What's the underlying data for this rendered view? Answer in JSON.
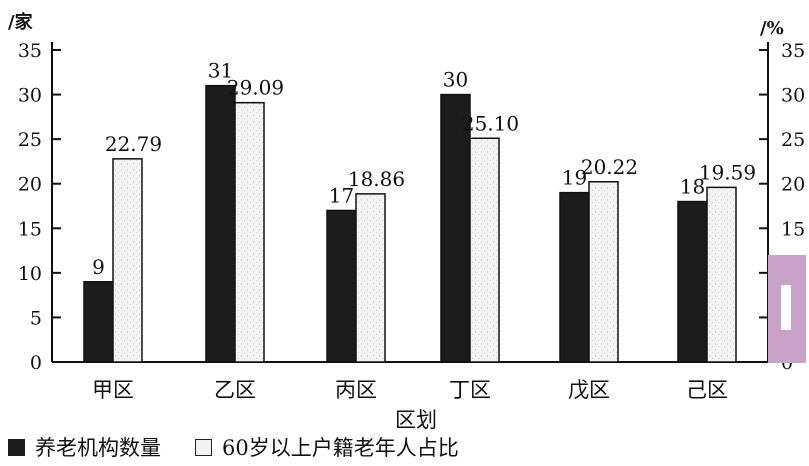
{
  "chart_data": {
    "type": "bar",
    "categories": [
      "甲区",
      "乙区",
      "丙区",
      "丁区",
      "戊区",
      "己区"
    ],
    "series": [
      {
        "name": "养老机构数量",
        "axis": "left",
        "color": "#1c1c1c",
        "values": [
          9,
          31,
          17,
          30,
          19,
          18
        ],
        "labels": [
          "9",
          "31",
          "17",
          "30",
          "19",
          "18"
        ]
      },
      {
        "name": "60岁以上户籍老年人占比",
        "axis": "right",
        "color": "#f2f2f2",
        "values": [
          22.79,
          29.09,
          18.86,
          25.1,
          20.22,
          19.59
        ],
        "labels": [
          "22.79",
          "29.09",
          "18.86",
          "25.10",
          "20.22",
          "19.59"
        ]
      }
    ],
    "xlabel": "区划",
    "ylabel_left": "/家",
    "ylabel_right": "/%",
    "ylim": [
      0,
      35
    ],
    "yticks": [
      "0",
      "5",
      "10",
      "15",
      "20",
      "25",
      "30",
      "35"
    ],
    "grid": false,
    "legend_position": "bottom-left"
  }
}
